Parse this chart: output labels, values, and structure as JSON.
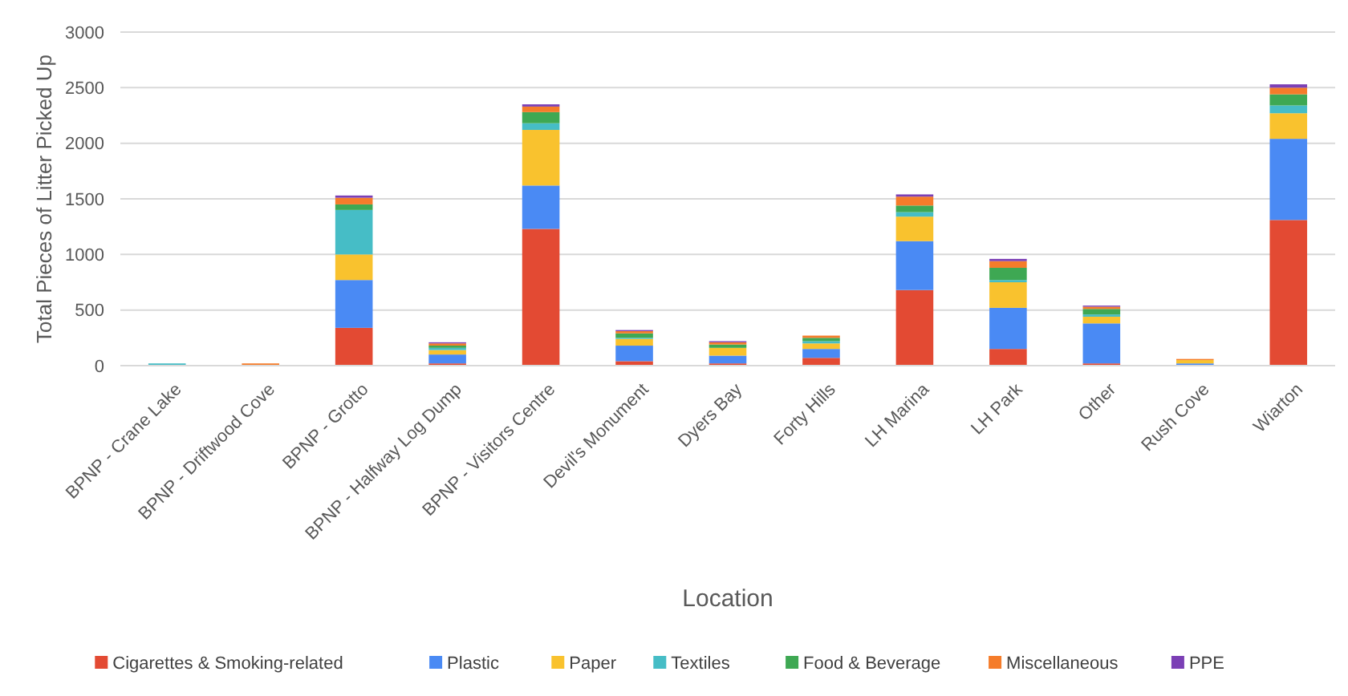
{
  "chart_data": {
    "type": "bar",
    "stacked": true,
    "xlabel": "Location",
    "ylabel": "Total Pieces of Litter Picked Up",
    "categories": [
      "BPNP - Crane Lake",
      "BPNP - Driftwood Cove",
      "BPNP - Grotto",
      "BPNP - Halfway Log Dump",
      "BPNP - Visitors Centre",
      "Devil's Monument",
      "Dyers Bay",
      "Forty Hills",
      "LH Marina",
      "LH Park",
      "Other",
      "Rush Cove",
      "Wiarton"
    ],
    "series": [
      {
        "name": "Cigarettes & Smoking-related",
        "color": "#e34a33",
        "values": [
          0,
          0,
          340,
          20,
          1230,
          40,
          20,
          70,
          680,
          150,
          20,
          0,
          1310
        ]
      },
      {
        "name": "Plastic",
        "color": "#4a8af4",
        "values": [
          0,
          0,
          430,
          80,
          390,
          140,
          70,
          80,
          440,
          370,
          360,
          20,
          730
        ]
      },
      {
        "name": "Paper",
        "color": "#f9c22e",
        "values": [
          0,
          0,
          230,
          40,
          500,
          60,
          70,
          50,
          220,
          230,
          60,
          30,
          230
        ]
      },
      {
        "name": "Textiles",
        "color": "#46bdc6",
        "values": [
          20,
          0,
          400,
          20,
          60,
          10,
          0,
          20,
          40,
          20,
          20,
          0,
          70
        ]
      },
      {
        "name": "Food & Beverage",
        "color": "#3ea853",
        "values": [
          0,
          0,
          50,
          20,
          100,
          40,
          30,
          30,
          60,
          110,
          50,
          0,
          100
        ]
      },
      {
        "name": "Miscellaneous",
        "color": "#f57c2a",
        "values": [
          0,
          20,
          60,
          20,
          50,
          20,
          20,
          20,
          80,
          60,
          20,
          10,
          60
        ]
      },
      {
        "name": "PPE",
        "color": "#7b3fb5",
        "values": [
          0,
          0,
          20,
          10,
          20,
          10,
          10,
          0,
          20,
          20,
          10,
          0,
          30
        ]
      }
    ],
    "ylim": [
      0,
      3000
    ],
    "yticks": [
      0,
      500,
      1000,
      1500,
      2000,
      2500,
      3000
    ],
    "grid": "y",
    "legend": "bottom"
  }
}
